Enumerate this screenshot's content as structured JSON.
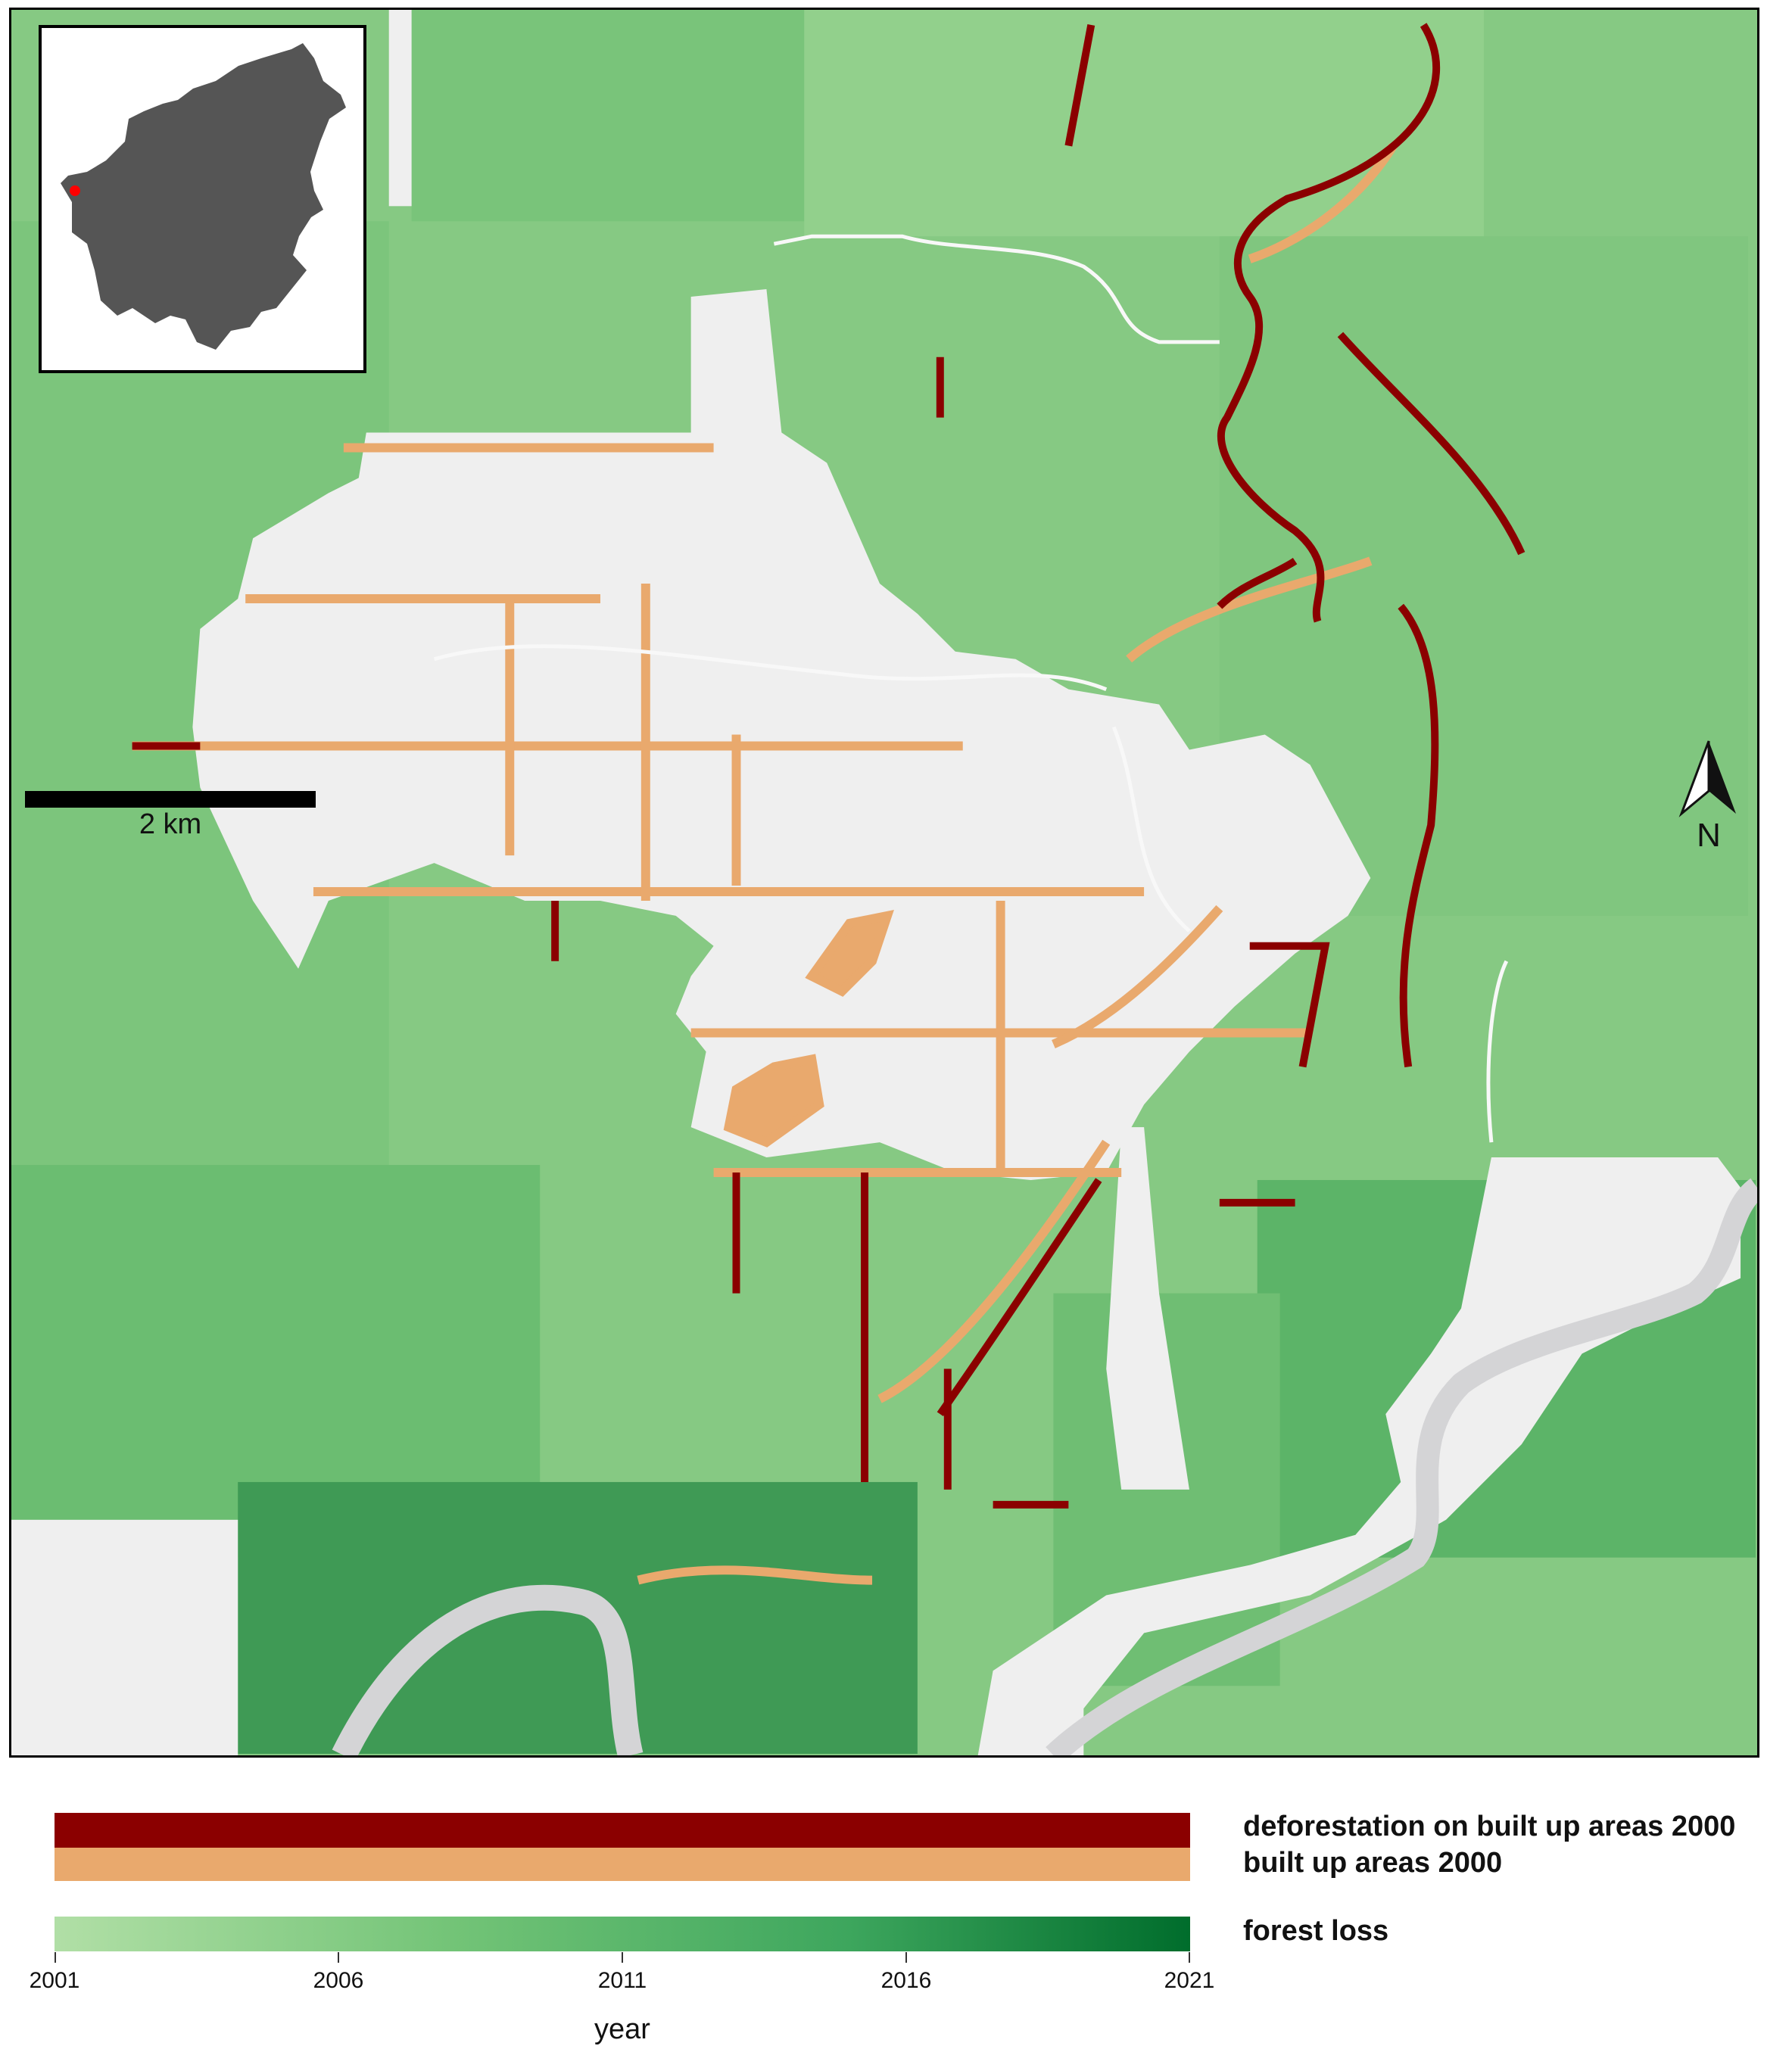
{
  "map": {
    "scale_label": "2 km",
    "north_label": "N",
    "colors": {
      "deforestation_built_up": "#8b0000",
      "built_up_2000": "#e9a96d",
      "non_forest": "#efefef",
      "river": "#d4d4d6",
      "forest_loss_start": "#b1dfa6",
      "forest_loss_end": "#006d2c"
    },
    "inset": {
      "island_color": "#555555",
      "marker_color": "#ff0000"
    }
  },
  "legend": {
    "deforestation_label": "deforestation on built up areas 2000",
    "built_up_label": "built up areas 2000",
    "forest_loss_label": "forest loss",
    "axis_title": "year",
    "ticks": [
      "2001",
      "2006",
      "2011",
      "2016",
      "2021"
    ]
  }
}
